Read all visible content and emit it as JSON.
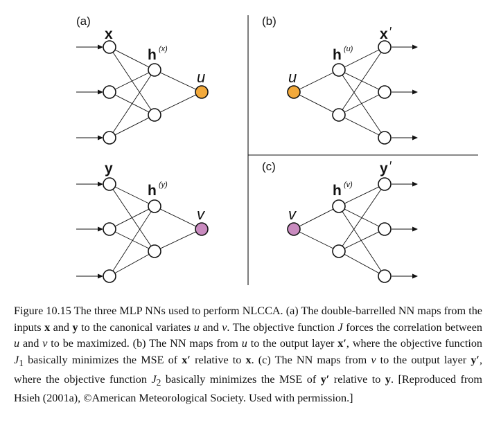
{
  "panels": {
    "a": {
      "label": "(a)",
      "x": {
        "name": "x"
      },
      "hx": {
        "name": "h",
        "sup": "(x)"
      },
      "u": {
        "name": "u"
      },
      "y": {
        "name": "y"
      },
      "hy": {
        "name": "h",
        "sup": "(y)"
      },
      "v": {
        "name": "v"
      }
    },
    "b": {
      "label": "(b)",
      "u": {
        "name": "u"
      },
      "hu": {
        "name": "h",
        "sup": "(u)"
      },
      "xp": {
        "name": "x",
        "prime": "′"
      }
    },
    "c": {
      "label": "(c)",
      "v": {
        "name": "v"
      },
      "hv": {
        "name": "h",
        "sup": "(v)"
      },
      "yp": {
        "name": "y",
        "prime": "′"
      }
    }
  },
  "colors": {
    "u_node": "#f2a93b",
    "v_node": "#c98bbf",
    "u_label": "#cc2222",
    "v_label": "#8a3a8a"
  },
  "caption": {
    "t1": "Figure 10.15 The three MLP NNs used to perform NLCCA. (a) The double-barrelled NN maps from the inputs ",
    "x": "x",
    "t2": " and ",
    "y": "y",
    "t3": " to the canonical variates ",
    "u": "u",
    "t4": " and ",
    "v": "v",
    "t5": ". The objective function ",
    "J": "J",
    "t6": " forces the correlation between ",
    "u2": "u",
    "t7": " and ",
    "v2": "v",
    "t8": " to be maximized. (b) The NN maps from ",
    "u3": "u",
    "t9": " to the output layer ",
    "xp": "x′",
    "t10": ", where the objective function ",
    "J1": "J",
    "J1sub": "1",
    "t11": " basically minimizes the MSE of ",
    "xp2": "x′",
    "t12": " relative to ",
    "x2": "x",
    "t13": ". (c) The NN maps from ",
    "v3": "v",
    "t14": " to the output layer ",
    "yp": "y′",
    "t15": ", where the objective function ",
    "J2": "J",
    "J2sub": "2",
    "t16": " basically minimizes the MSE of ",
    "yp2": "y′",
    "t17": " relative to ",
    "y2": "y",
    "t18": ". [Reproduced from Hsieh (2001a), ©American Meteorological Society. Used with permission.]"
  }
}
